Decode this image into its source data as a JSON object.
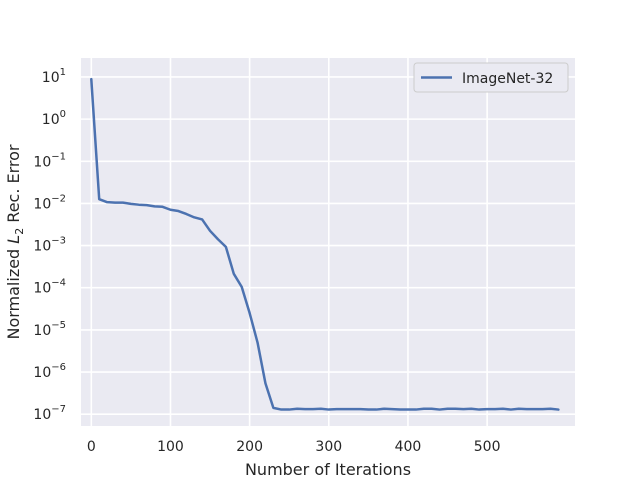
{
  "chart_data": {
    "type": "line",
    "title": "",
    "xlabel": "Number of Iterations",
    "ylabel": {
      "prefix": "Normalized ",
      "symbol": "L",
      "subscript": "2",
      "suffix": " Rec. Error"
    },
    "y_scale": "log",
    "xlim": [
      -13,
      611
    ],
    "ylim_exponents": [
      -7.28,
      1.45
    ],
    "x_ticks": [
      0,
      100,
      200,
      300,
      400,
      500
    ],
    "y_ticks": [
      {
        "base": "10",
        "exp": "1",
        "exponent_value": 1
      },
      {
        "base": "10",
        "exp": "0",
        "exponent_value": 0
      },
      {
        "base": "10",
        "exp": "−1",
        "exponent_value": -1
      },
      {
        "base": "10",
        "exp": "−2",
        "exponent_value": -2
      },
      {
        "base": "10",
        "exp": "−3",
        "exponent_value": -3
      },
      {
        "base": "10",
        "exp": "−4",
        "exponent_value": -4
      },
      {
        "base": "10",
        "exp": "−5",
        "exponent_value": -5
      },
      {
        "base": "10",
        "exp": "−6",
        "exponent_value": -6
      },
      {
        "base": "10",
        "exp": "−7",
        "exponent_value": -7
      }
    ],
    "grid": true,
    "legend_position": "top-right",
    "series": [
      {
        "name": "ImageNet-32",
        "color": "#4c72b0",
        "x": [
          0,
          10,
          20,
          30,
          40,
          50,
          60,
          70,
          80,
          90,
          100,
          110,
          120,
          130,
          140,
          150,
          160,
          170,
          180,
          190,
          200,
          210,
          220,
          230,
          240,
          250,
          260,
          270,
          280,
          290,
          300,
          310,
          320,
          330,
          340,
          350,
          360,
          370,
          380,
          390,
          400,
          410,
          420,
          430,
          440,
          450,
          460,
          470,
          480,
          490,
          500,
          510,
          520,
          530,
          540,
          550,
          560,
          570,
          580,
          590
        ],
        "log10_y": [
          0.95,
          -1.9,
          -1.97,
          -1.98,
          -1.98,
          -2.01,
          -2.03,
          -2.04,
          -2.07,
          -2.08,
          -2.15,
          -2.18,
          -2.25,
          -2.33,
          -2.38,
          -2.65,
          -2.85,
          -3.03,
          -3.67,
          -3.98,
          -4.6,
          -5.3,
          -6.27,
          -6.85,
          -6.89,
          -6.89,
          -6.87,
          -6.88,
          -6.88,
          -6.87,
          -6.89,
          -6.88,
          -6.88,
          -6.88,
          -6.88,
          -6.89,
          -6.89,
          -6.87,
          -6.88,
          -6.89,
          -6.89,
          -6.89,
          -6.87,
          -6.87,
          -6.89,
          -6.87,
          -6.87,
          -6.88,
          -6.87,
          -6.89,
          -6.88,
          -6.88,
          -6.87,
          -6.89,
          -6.87,
          -6.88,
          -6.88,
          -6.88,
          -6.87,
          -6.89
        ]
      }
    ]
  }
}
